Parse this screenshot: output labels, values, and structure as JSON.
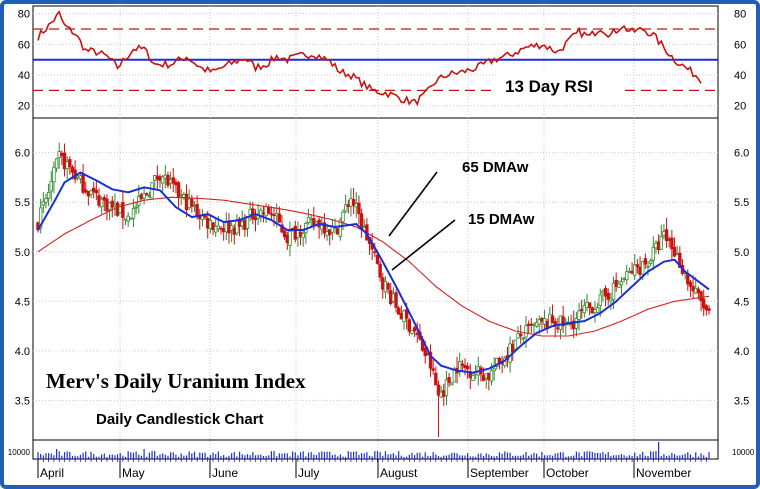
{
  "chart_data": {
    "type": "candlestick",
    "title": "Merv's Daily Uranium Index",
    "subtitle": "Daily Candlestick Chart",
    "months": [
      "April",
      "May",
      "June",
      "July",
      "August",
      "September",
      "October",
      "November"
    ],
    "price_axis": {
      "ticks": [
        "6.0",
        "5.5",
        "5.0",
        "4.5",
        "4.0",
        "3.5"
      ],
      "ylim": [
        3.1,
        6.35
      ]
    },
    "rsi_axis": {
      "ticks": [
        "80",
        "60",
        "40",
        "20"
      ],
      "ylim": [
        12,
        85
      ],
      "overbought": 70,
      "oversold": 30,
      "midline": 50
    },
    "volume_axis": {
      "label": "10000"
    },
    "annotations": {
      "rsi": "13 Day RSI",
      "ma65": "65 DMAw",
      "ma15": "15 DMAw"
    },
    "colors": {
      "up": "#2e8b2e",
      "down": "#cc1111",
      "ma15": "#1a2fd6",
      "ma65": "#d42020",
      "rsi": "#cc1111",
      "volume": "#1a2fd6",
      "frame": "#1f5fb8"
    },
    "grid": true,
    "price_anchors": [
      [
        0,
        5.3
      ],
      [
        4,
        5.6
      ],
      [
        8,
        5.95
      ],
      [
        12,
        5.85
      ],
      [
        16,
        5.7
      ],
      [
        22,
        5.55
      ],
      [
        28,
        5.45
      ],
      [
        34,
        5.35
      ],
      [
        40,
        5.55
      ],
      [
        46,
        5.8
      ],
      [
        52,
        5.6
      ],
      [
        58,
        5.45
      ],
      [
        64,
        5.3
      ],
      [
        70,
        5.25
      ],
      [
        76,
        5.25
      ],
      [
        82,
        5.4
      ],
      [
        88,
        5.4
      ],
      [
        94,
        5.15
      ],
      [
        100,
        5.25
      ],
      [
        106,
        5.3
      ],
      [
        112,
        5.2
      ],
      [
        118,
        5.55
      ],
      [
        124,
        5.15
      ],
      [
        130,
        4.7
      ],
      [
        136,
        4.4
      ],
      [
        142,
        4.2
      ],
      [
        148,
        3.85
      ],
      [
        151,
        3.55
      ],
      [
        154,
        3.65
      ],
      [
        158,
        3.85
      ],
      [
        164,
        3.8
      ],
      [
        170,
        3.75
      ],
      [
        176,
        3.95
      ],
      [
        182,
        4.15
      ],
      [
        188,
        4.25
      ],
      [
        194,
        4.3
      ],
      [
        200,
        4.25
      ],
      [
        206,
        4.4
      ],
      [
        212,
        4.5
      ],
      [
        218,
        4.65
      ],
      [
        224,
        4.8
      ],
      [
        230,
        4.9
      ],
      [
        236,
        5.15
      ],
      [
        238,
        5.1
      ],
      [
        242,
        4.9
      ],
      [
        246,
        4.65
      ],
      [
        250,
        4.5
      ],
      [
        253,
        4.35
      ]
    ],
    "rsi_anchors": [
      [
        0,
        65
      ],
      [
        4,
        72
      ],
      [
        8,
        80
      ],
      [
        10,
        72
      ],
      [
        14,
        67
      ],
      [
        18,
        56
      ],
      [
        22,
        55
      ],
      [
        26,
        52
      ],
      [
        30,
        45
      ],
      [
        36,
        57
      ],
      [
        40,
        57
      ],
      [
        44,
        47
      ],
      [
        50,
        47
      ],
      [
        56,
        52
      ],
      [
        62,
        44
      ],
      [
        66,
        42
      ],
      [
        72,
        47
      ],
      [
        78,
        51
      ],
      [
        82,
        45
      ],
      [
        86,
        47
      ],
      [
        90,
        52
      ],
      [
        94,
        50
      ],
      [
        100,
        53
      ],
      [
        104,
        54
      ],
      [
        110,
        49
      ],
      [
        114,
        42
      ],
      [
        118,
        40
      ],
      [
        122,
        35
      ],
      [
        126,
        30
      ],
      [
        132,
        28
      ],
      [
        138,
        24
      ],
      [
        142,
        22
      ],
      [
        146,
        27
      ],
      [
        150,
        36
      ],
      [
        154,
        40
      ],
      [
        160,
        42
      ],
      [
        166,
        45
      ],
      [
        172,
        50
      ],
      [
        178,
        53
      ],
      [
        184,
        58
      ],
      [
        190,
        60
      ],
      [
        196,
        55
      ],
      [
        200,
        62
      ],
      [
        204,
        68
      ],
      [
        208,
        65
      ],
      [
        212,
        71
      ],
      [
        216,
        66
      ],
      [
        220,
        72
      ],
      [
        224,
        68
      ],
      [
        228,
        70
      ],
      [
        232,
        66
      ],
      [
        236,
        58
      ],
      [
        240,
        50
      ],
      [
        244,
        45
      ],
      [
        248,
        40
      ],
      [
        250,
        37
      ]
    ],
    "ma15_anchors": [
      [
        0,
        5.22
      ],
      [
        6,
        5.5
      ],
      [
        10,
        5.7
      ],
      [
        16,
        5.8
      ],
      [
        22,
        5.72
      ],
      [
        28,
        5.63
      ],
      [
        34,
        5.6
      ],
      [
        40,
        5.65
      ],
      [
        46,
        5.62
      ],
      [
        52,
        5.45
      ],
      [
        58,
        5.35
      ],
      [
        64,
        5.38
      ],
      [
        70,
        5.3
      ],
      [
        76,
        5.32
      ],
      [
        82,
        5.38
      ],
      [
        88,
        5.32
      ],
      [
        94,
        5.22
      ],
      [
        100,
        5.22
      ],
      [
        106,
        5.28
      ],
      [
        112,
        5.25
      ],
      [
        120,
        5.28
      ],
      [
        124,
        5.18
      ],
      [
        130,
        4.9
      ],
      [
        136,
        4.6
      ],
      [
        142,
        4.28
      ],
      [
        148,
        3.95
      ],
      [
        152,
        3.85
      ],
      [
        158,
        3.8
      ],
      [
        164,
        3.78
      ],
      [
        170,
        3.82
      ],
      [
        176,
        3.9
      ],
      [
        182,
        4.05
      ],
      [
        188,
        4.18
      ],
      [
        194,
        4.25
      ],
      [
        200,
        4.28
      ],
      [
        206,
        4.3
      ],
      [
        212,
        4.38
      ],
      [
        218,
        4.5
      ],
      [
        224,
        4.65
      ],
      [
        230,
        4.8
      ],
      [
        236,
        4.9
      ],
      [
        240,
        4.92
      ],
      [
        244,
        4.8
      ],
      [
        248,
        4.72
      ],
      [
        253,
        4.62
      ]
    ],
    "ma65_anchors": [
      [
        0,
        5.0
      ],
      [
        10,
        5.18
      ],
      [
        20,
        5.32
      ],
      [
        30,
        5.45
      ],
      [
        40,
        5.52
      ],
      [
        50,
        5.55
      ],
      [
        60,
        5.54
      ],
      [
        70,
        5.52
      ],
      [
        80,
        5.48
      ],
      [
        90,
        5.44
      ],
      [
        100,
        5.39
      ],
      [
        110,
        5.33
      ],
      [
        120,
        5.25
      ],
      [
        130,
        5.1
      ],
      [
        140,
        4.9
      ],
      [
        150,
        4.65
      ],
      [
        160,
        4.45
      ],
      [
        170,
        4.3
      ],
      [
        180,
        4.2
      ],
      [
        190,
        4.15
      ],
      [
        200,
        4.15
      ],
      [
        210,
        4.2
      ],
      [
        220,
        4.3
      ],
      [
        230,
        4.42
      ],
      [
        240,
        4.5
      ],
      [
        253,
        4.55
      ]
    ]
  }
}
